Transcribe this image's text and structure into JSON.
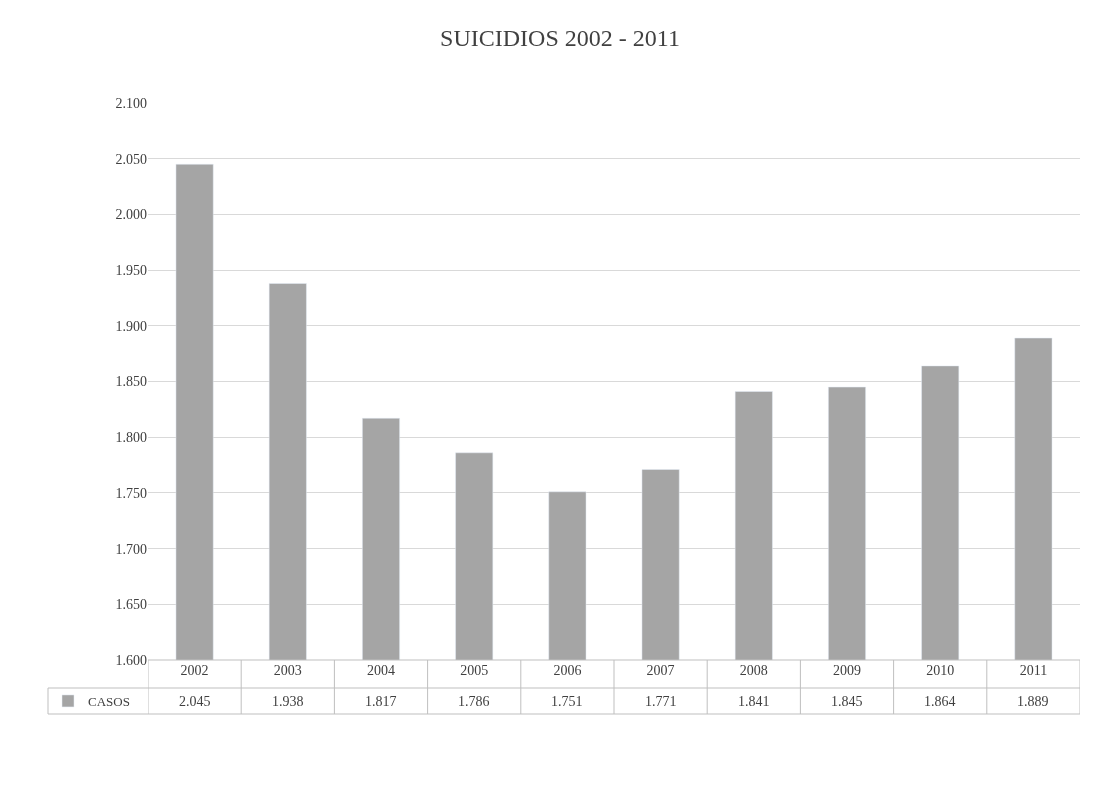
{
  "chart_data": {
    "type": "bar",
    "title": "SUICIDIOS 2002 - 2011",
    "categories": [
      "2002",
      "2003",
      "2004",
      "2005",
      "2006",
      "2007",
      "2008",
      "2009",
      "2010",
      "2011"
    ],
    "series": [
      {
        "name": "CASOS",
        "color": "#a5a5a5",
        "values": [
          2045,
          1938,
          1817,
          1786,
          1751,
          1771,
          1841,
          1845,
          1864,
          1889
        ],
        "value_labels": [
          "2.045",
          "1.938",
          "1.817",
          "1.786",
          "1.751",
          "1.771",
          "1.841",
          "1.845",
          "1.864",
          "1.889"
        ]
      }
    ],
    "ylim": [
      1600,
      2100
    ],
    "yticks": [
      {
        "value": 1600,
        "label": "1.600"
      },
      {
        "value": 1650,
        "label": "1.650"
      },
      {
        "value": 1700,
        "label": "1.700"
      },
      {
        "value": 1750,
        "label": "1.750"
      },
      {
        "value": 1800,
        "label": "1.800"
      },
      {
        "value": 1850,
        "label": "1.850"
      },
      {
        "value": 1900,
        "label": "1.900"
      },
      {
        "value": 1950,
        "label": "1.950"
      },
      {
        "value": 2000,
        "label": "2.000"
      },
      {
        "value": 2050,
        "label": "2.050"
      },
      {
        "value": 2100,
        "label": "2.100"
      }
    ],
    "grid": "y",
    "legend": "bottom left"
  }
}
